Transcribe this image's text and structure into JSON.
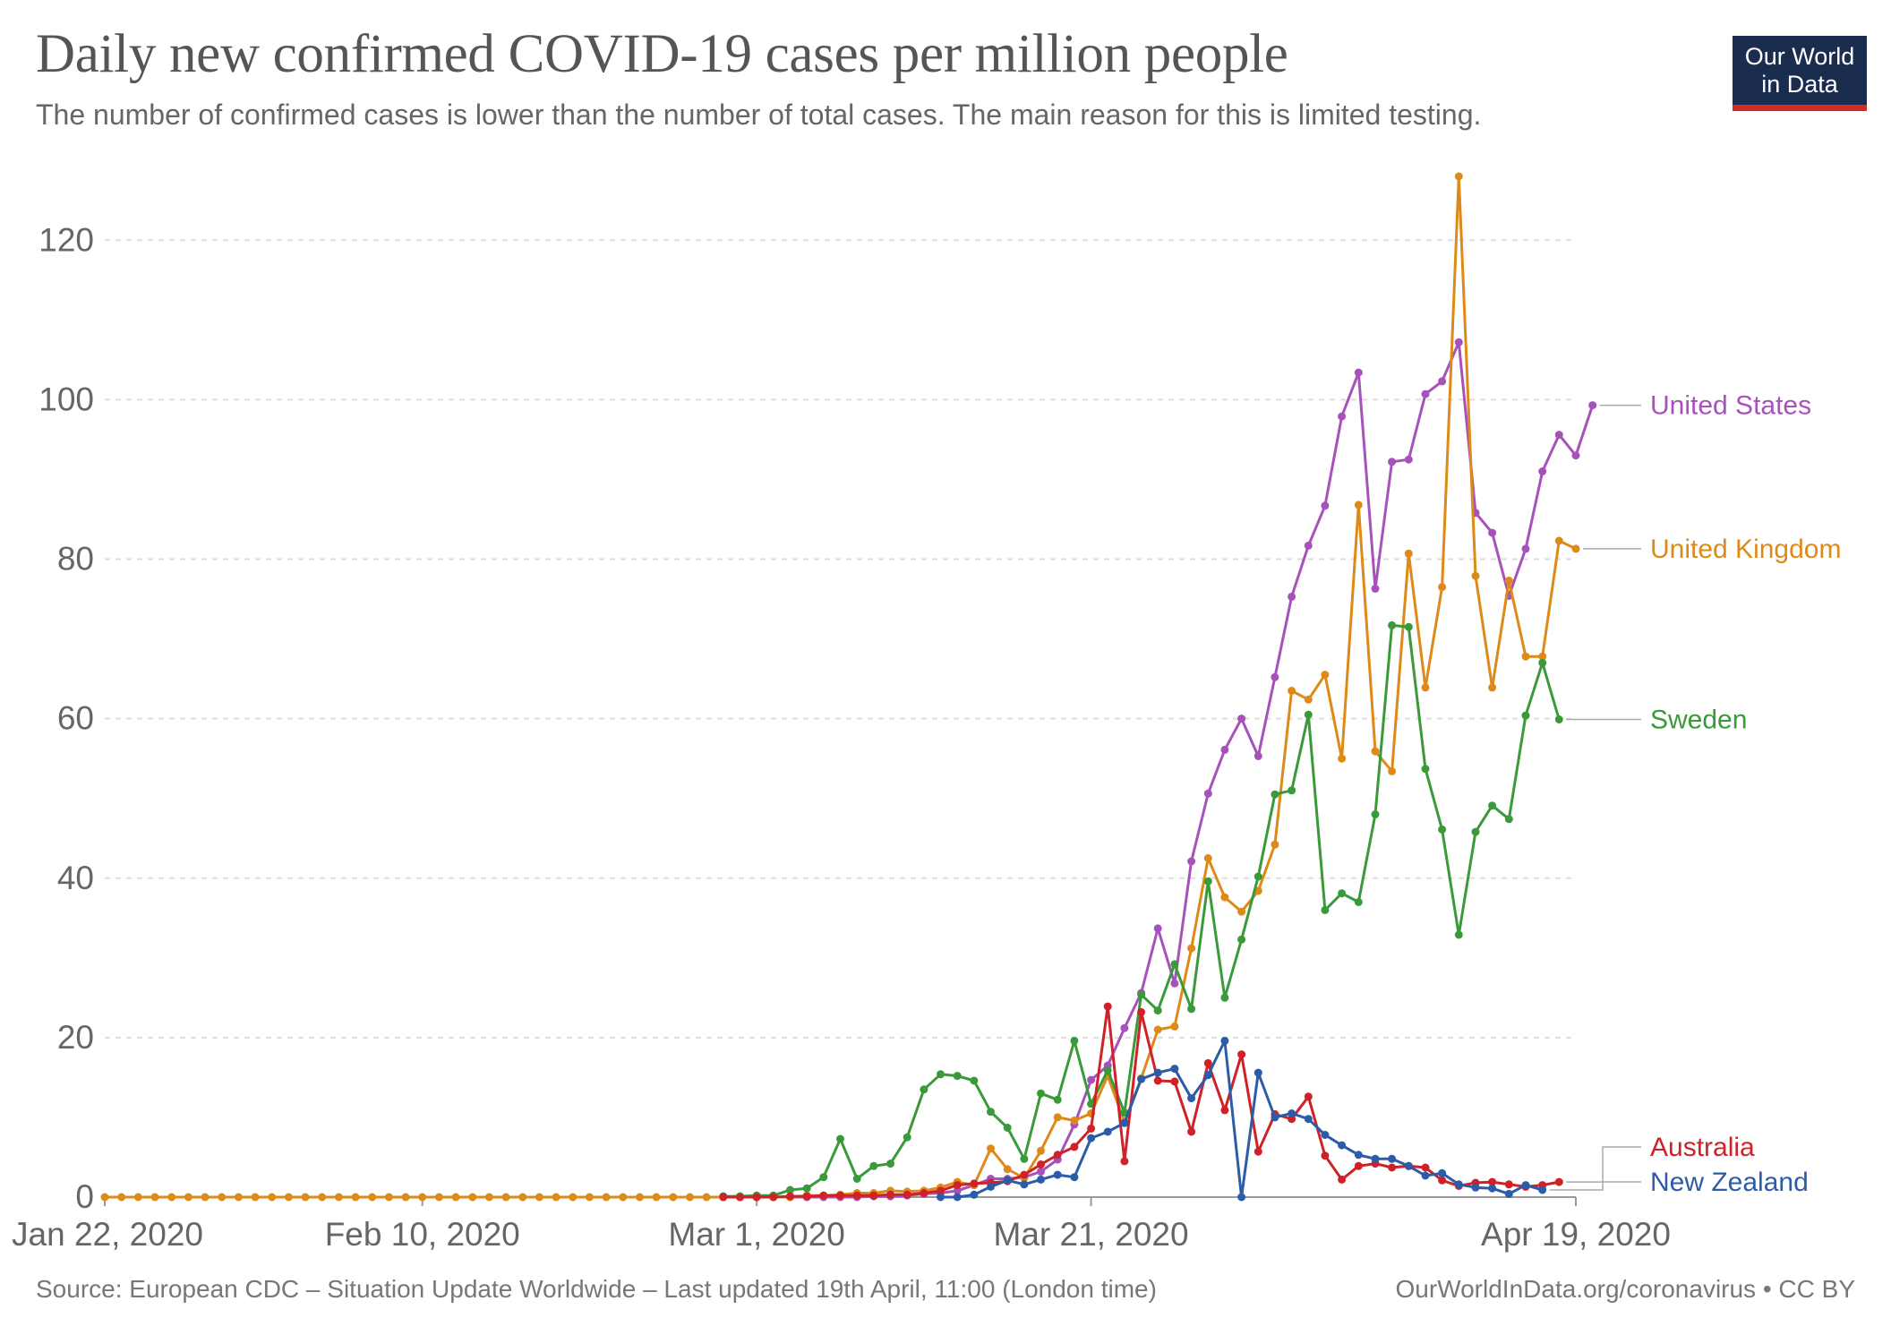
{
  "header": {
    "title": "Daily new confirmed COVID-19 cases per million people",
    "subtitle": "The number of confirmed cases is lower than the number of total cases. The main reason for this is limited testing."
  },
  "logo": {
    "line1": "Our World",
    "line2": "in Data"
  },
  "footer": {
    "source": "Source: European CDC – Situation Update Worldwide – Last updated 19th April, 11:00 (London time)",
    "license": "OurWorldInData.org/coronavirus • CC BY"
  },
  "chart_data": {
    "type": "line",
    "title": "Daily new confirmed COVID-19 cases per million people",
    "xlabel": "",
    "ylabel": "",
    "x_start": "Jan 22, 2020",
    "x_end": "Apr 19, 2020",
    "xlim": [
      0,
      88
    ],
    "ylim": [
      0,
      128
    ],
    "grid": true,
    "yticks": [
      0,
      20,
      40,
      60,
      80,
      100,
      120
    ],
    "xticks": [
      {
        "day": 0,
        "label": "Jan 22, 2020"
      },
      {
        "day": 19,
        "label": "Feb 10, 2020"
      },
      {
        "day": 39,
        "label": "Mar 1, 2020"
      },
      {
        "day": 59,
        "label": "Mar 21, 2020"
      },
      {
        "day": 88,
        "label": "Apr 19, 2020"
      }
    ],
    "series": [
      {
        "name": "United States",
        "color": "#a652ba",
        "start_day": 37,
        "values": [
          0,
          0,
          0,
          0,
          0,
          0,
          0,
          0,
          0,
          0.1,
          0.1,
          0.2,
          0.4,
          0.5,
          0.8,
          1.5,
          2.3,
          2.3,
          2.5,
          3.2,
          4.7,
          9.1,
          14.7,
          16.5,
          21.2,
          25.6,
          33.7,
          26.8,
          42.1,
          50.6,
          56.1,
          60.0,
          55.3,
          65.2,
          75.3,
          81.7,
          86.7,
          97.9,
          103.4,
          76.3,
          92.2,
          92.5,
          100.7,
          102.3,
          107.2,
          85.8,
          83.3,
          75.4,
          81.3,
          91.0,
          95.6,
          93.0,
          99.3
        ]
      },
      {
        "name": "United Kingdom",
        "color": "#dd8a19",
        "start_day": 0,
        "values": [
          0,
          0,
          0,
          0,
          0,
          0,
          0,
          0,
          0,
          0,
          0,
          0,
          0,
          0,
          0,
          0,
          0,
          0,
          0,
          0,
          0,
          0,
          0,
          0,
          0,
          0,
          0,
          0,
          0,
          0,
          0,
          0,
          0,
          0,
          0,
          0,
          0,
          0,
          0,
          0,
          0,
          0,
          0.2,
          0.2,
          0.3,
          0.5,
          0.5,
          0.8,
          0.7,
          0.8,
          1.2,
          1.9,
          1.5,
          6.1,
          3.5,
          2.4,
          5.8,
          10.0,
          9.6,
          10.5,
          15.2,
          9.4,
          14.9,
          21.0,
          21.4,
          31.2,
          42.5,
          37.6,
          35.8,
          38.4,
          44.2,
          63.5,
          62.4,
          65.5,
          55.0,
          86.8,
          55.9,
          53.4,
          80.7,
          63.9,
          76.5,
          128.0,
          77.9,
          63.9,
          77.3,
          67.8,
          67.8,
          82.3,
          81.3
        ]
      },
      {
        "name": "Sweden",
        "color": "#3a9a3a",
        "start_day": 37,
        "values": [
          0.1,
          0.1,
          0.2,
          0.2,
          0.9,
          1.1,
          2.5,
          7.3,
          2.3,
          3.9,
          4.2,
          7.5,
          13.5,
          15.4,
          15.2,
          14.6,
          10.7,
          8.7,
          4.8,
          13.0,
          12.2,
          19.6,
          11.7,
          15.9,
          10.6,
          25.4,
          23.4,
          29.2,
          23.6,
          39.6,
          25.0,
          32.3,
          40.2,
          50.5,
          51.0,
          60.5,
          36.0,
          38.1,
          37.0,
          48.0,
          71.7,
          71.5,
          53.7,
          46.1,
          32.9,
          45.8,
          49.1,
          47.4,
          60.4,
          67.0,
          59.9
        ]
      },
      {
        "name": "Australia",
        "color": "#cf2127",
        "start_day": 37,
        "values": [
          0,
          0,
          0,
          0,
          0.1,
          0.1,
          0.2,
          0.2,
          0.2,
          0.2,
          0.3,
          0.3,
          0.5,
          0.8,
          1.5,
          1.7,
          1.8,
          2.0,
          2.8,
          4.1,
          5.3,
          6.3,
          8.6,
          23.9,
          4.5,
          23.2,
          14.6,
          14.5,
          8.2,
          16.8,
          10.9,
          17.9,
          5.7,
          10.4,
          9.8,
          12.6,
          5.2,
          2.2,
          3.9,
          4.2,
          3.7,
          3.9,
          3.7,
          2.1,
          1.4,
          1.8,
          1.9,
          1.6,
          1.3,
          1.5,
          1.9
        ]
      },
      {
        "name": "New Zealand",
        "color": "#2c5ba8",
        "start_day": 50,
        "values": [
          0,
          0,
          0.3,
          1.3,
          2.1,
          1.6,
          2.2,
          2.8,
          2.5,
          7.4,
          8.2,
          9.3,
          14.8,
          15.6,
          16.1,
          12.4,
          15.3,
          19.6,
          0,
          15.6,
          10.0,
          10.5,
          9.8,
          7.8,
          6.5,
          5.3,
          4.8,
          4.8,
          3.9,
          2.7,
          3.0,
          1.6,
          1.2,
          1.1,
          0.4,
          1.5,
          0.9
        ]
      }
    ]
  }
}
